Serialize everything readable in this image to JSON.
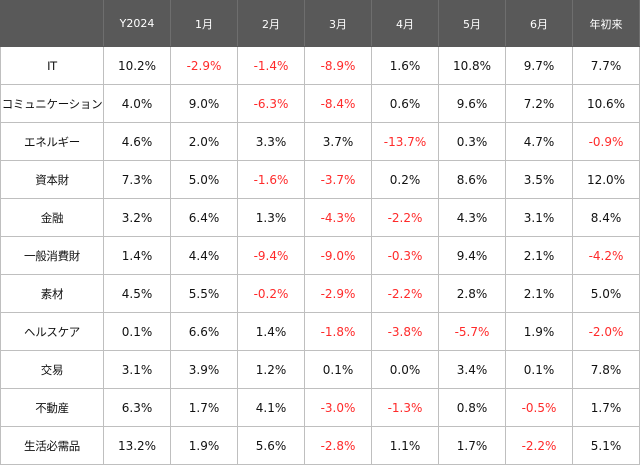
{
  "table": {
    "headers": [
      "",
      "Y2024",
      "1月",
      "2月",
      "3月",
      "4月",
      "5月",
      "6月",
      "年初来"
    ],
    "rows": [
      {
        "label": "IT",
        "values": [
          "10.2%",
          "-2.9%",
          "-1.4%",
          "-8.9%",
          "1.6%",
          "10.8%",
          "9.7%",
          "7.7%"
        ]
      },
      {
        "label": "コミュニケーション",
        "values": [
          "4.0%",
          "9.0%",
          "-6.3%",
          "-8.4%",
          "0.6%",
          "9.6%",
          "7.2%",
          "10.6%"
        ]
      },
      {
        "label": "エネルギー",
        "values": [
          "4.6%",
          "2.0%",
          "3.3%",
          "3.7%",
          "-13.7%",
          "0.3%",
          "4.7%",
          "-0.9%"
        ]
      },
      {
        "label": "資本財",
        "values": [
          "7.3%",
          "5.0%",
          "-1.6%",
          "-3.7%",
          "0.2%",
          "8.6%",
          "3.5%",
          "12.0%"
        ]
      },
      {
        "label": "金融",
        "values": [
          "3.2%",
          "6.4%",
          "1.3%",
          "-4.3%",
          "-2.2%",
          "4.3%",
          "3.1%",
          "8.4%"
        ]
      },
      {
        "label": "一般消費財",
        "values": [
          "1.4%",
          "4.4%",
          "-9.4%",
          "-9.0%",
          "-0.3%",
          "9.4%",
          "2.1%",
          "-4.2%"
        ]
      },
      {
        "label": "素材",
        "values": [
          "4.5%",
          "5.5%",
          "-0.2%",
          "-2.9%",
          "-2.2%",
          "2.8%",
          "2.1%",
          "5.0%"
        ]
      },
      {
        "label": "ヘルスケア",
        "values": [
          "0.1%",
          "6.6%",
          "1.4%",
          "-1.8%",
          "-3.8%",
          "-5.7%",
          "1.9%",
          "-2.0%"
        ]
      },
      {
        "label": "交易",
        "values": [
          "3.1%",
          "3.9%",
          "1.2%",
          "0.1%",
          "0.0%",
          "3.4%",
          "0.1%",
          "7.8%"
        ]
      },
      {
        "label": "不動産",
        "values": [
          "6.3%",
          "1.7%",
          "4.1%",
          "-3.0%",
          "-1.3%",
          "0.8%",
          "-0.5%",
          "1.7%"
        ]
      },
      {
        "label": "生活必需品",
        "values": [
          "13.2%",
          "1.9%",
          "5.6%",
          "-2.8%",
          "1.1%",
          "1.7%",
          "-2.2%",
          "5.1%"
        ]
      }
    ]
  },
  "colors": {
    "header_bg": "#595959",
    "header_text": "#ffffff",
    "negative": "#ff2a2a",
    "positive": "#111111",
    "grid": "#bfbfbf"
  }
}
